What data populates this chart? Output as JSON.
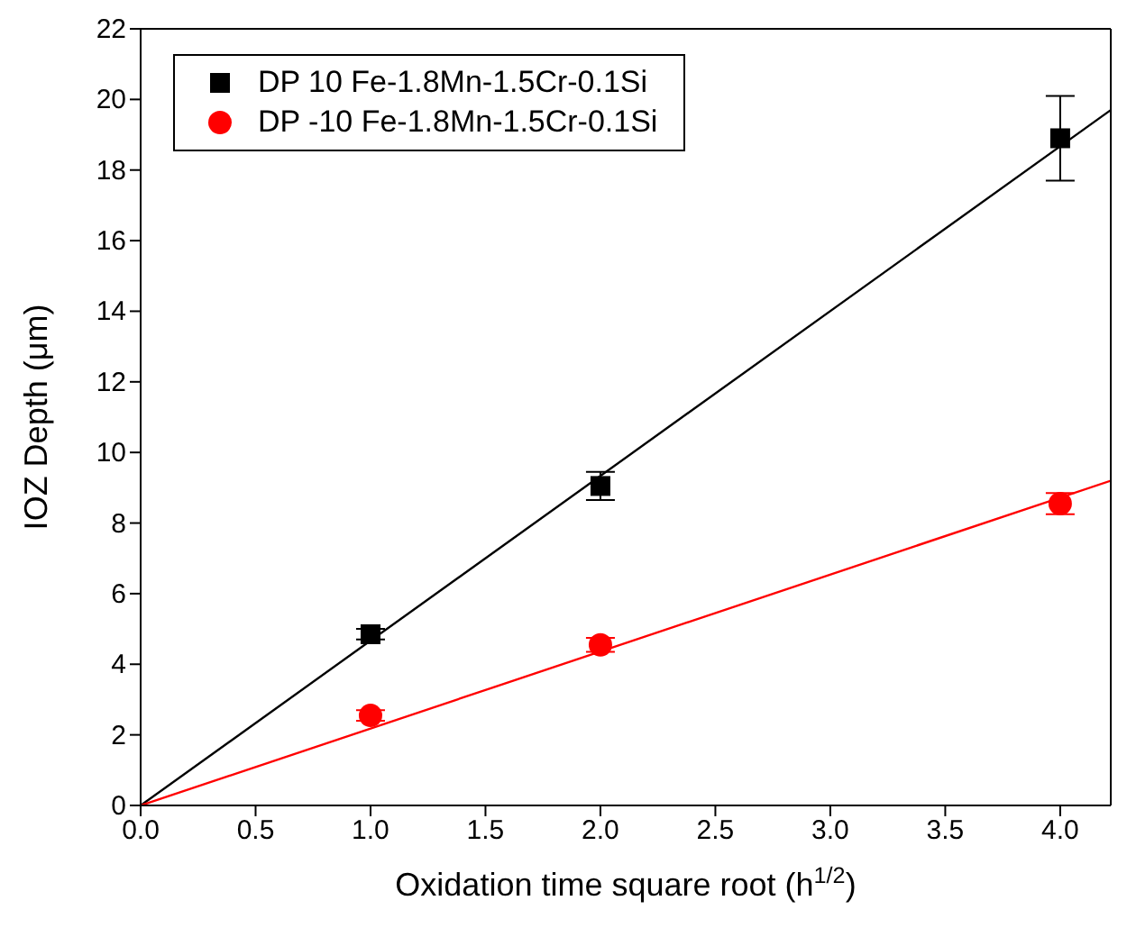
{
  "chart_data": {
    "type": "scatter",
    "xlabel": "Oxidation time square root (h$^{1/2}$)",
    "ylabel": "IOZ Depth (μm)",
    "xlim": [
      0,
      4.22
    ],
    "xticks": [
      {
        "value": 0,
        "label": "0.0"
      },
      0.5,
      {
        "value": 1,
        "label": "1.0"
      },
      1.5,
      {
        "value": 2,
        "label": "2.0"
      },
      2.5,
      {
        "value": 3,
        "label": "3.0"
      },
      3.5,
      {
        "value": 4,
        "label": "4.0"
      }
    ],
    "ylim": [
      0,
      22
    ],
    "yticks": [
      0,
      2,
      4,
      6,
      8,
      10,
      12,
      14,
      16,
      18,
      20,
      22
    ],
    "grid": false,
    "legend": "top left",
    "series": [
      {
        "name": "DP 10 Fe-1.8Mn-1.5Cr-0.1Si",
        "color": "#000000",
        "marker": "square",
        "x": [
          1,
          2,
          4
        ],
        "values": [
          4.85,
          9.05,
          18.9
        ],
        "errors": [
          0.15,
          0.4,
          1.2
        ]
      },
      {
        "name": "DP -10 Fe-1.8Mn-1.5Cr-0.1Si",
        "color": "#ff0000",
        "marker": "circle",
        "x": [
          1,
          2,
          4
        ],
        "values": [
          2.55,
          4.55,
          8.55
        ],
        "errors": [
          0.15,
          0.2,
          0.3
        ]
      },
      {
        "type": "line",
        "color": "#000000",
        "x": [
          0,
          4.22
        ],
        "values": [
          0,
          19.7
        ]
      },
      {
        "type": "line",
        "color": "#ff0000",
        "x": [
          0,
          4.22
        ],
        "values": [
          0,
          9.2
        ]
      }
    ]
  }
}
